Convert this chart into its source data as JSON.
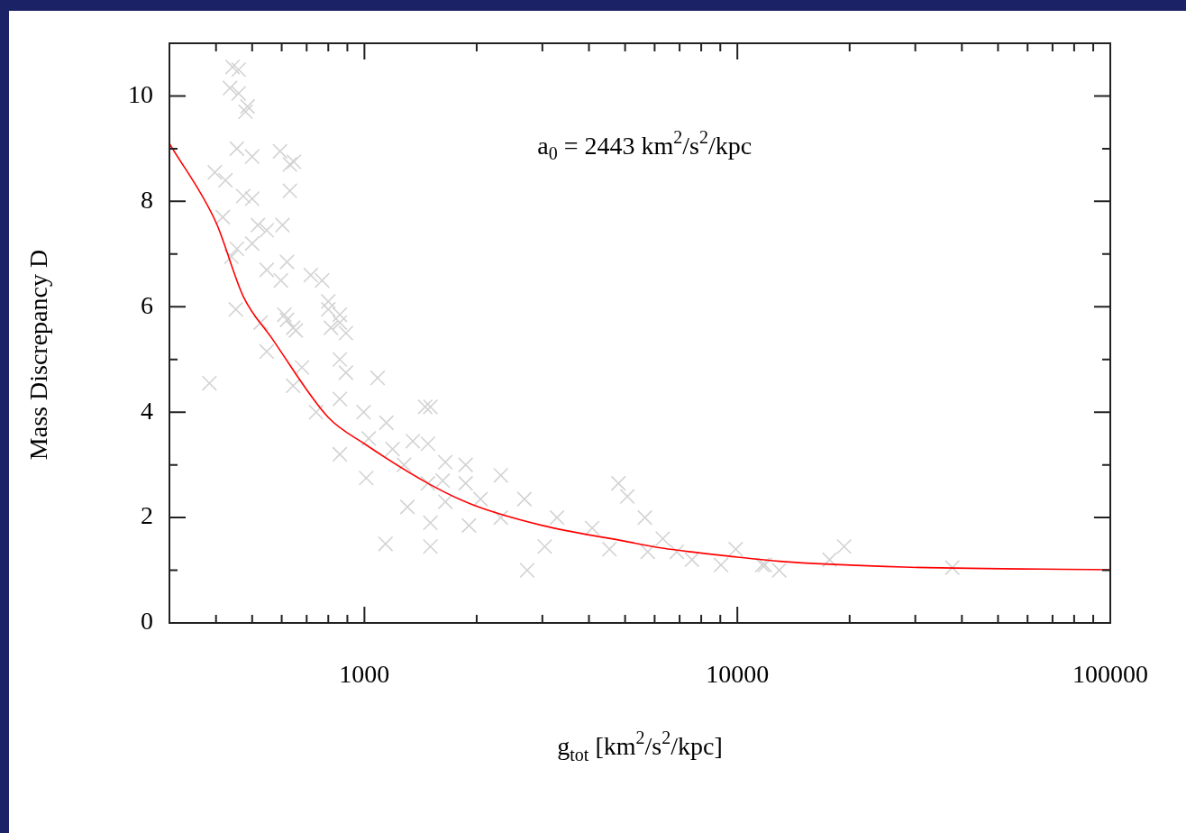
{
  "chart_data": {
    "type": "scatter",
    "xlabel": "g$_{tot}$ [km$^{2}$/s$^{2}$/kpc]",
    "ylabel": "Mass Discrepancy D",
    "annotations": [
      "a$_{0}$ = 2443 km$^{2}$/s$^{2}$/kpc"
    ],
    "log": "x",
    "grid": false,
    "legend": false,
    "xlim": [
      300,
      100000
    ],
    "ylim": [
      0,
      11
    ],
    "xticks": [
      {
        "value": 400,
        "label": null
      },
      {
        "value": 500,
        "label": null
      },
      {
        "value": 600,
        "label": null
      },
      {
        "value": 700,
        "label": null
      },
      {
        "value": 800,
        "label": null
      },
      {
        "value": 900,
        "label": null
      },
      1000,
      {
        "value": 2000,
        "label": null
      },
      {
        "value": 3000,
        "label": null
      },
      {
        "value": 4000,
        "label": null
      },
      {
        "value": 5000,
        "label": null
      },
      {
        "value": 6000,
        "label": null
      },
      {
        "value": 7000,
        "label": null
      },
      {
        "value": 8000,
        "label": null
      },
      {
        "value": 9000,
        "label": null
      },
      10000,
      {
        "value": 20000,
        "label": null
      },
      {
        "value": 30000,
        "label": null
      },
      {
        "value": 40000,
        "label": null
      },
      {
        "value": 50000,
        "label": null
      },
      {
        "value": 60000,
        "label": null
      },
      {
        "value": 70000,
        "label": null
      },
      {
        "value": 80000,
        "label": null
      },
      {
        "value": 90000,
        "label": null
      },
      100000
    ],
    "yticks": [
      0,
      {
        "value": 1,
        "label": null
      },
      2,
      {
        "value": 3,
        "label": null
      },
      4,
      {
        "value": 5,
        "label": null
      },
      6,
      {
        "value": 7,
        "label": null
      },
      8,
      {
        "value": 9,
        "label": null
      },
      10
    ],
    "series": [
      {
        "type": "scatter",
        "marker": "cross",
        "color": "#d3d3d3",
        "x": [
          443,
          460,
          436,
          460,
          486,
          480,
          455,
          500,
          594,
          631,
          647,
          631,
          397,
          424,
          473,
          500,
          417,
          518,
          547,
          603,
          455,
          500,
          440,
          547,
          620,
          597,
          718,
          770,
          800,
          859,
          452,
          527,
          620,
          655,
          813,
          892,
          610,
          644,
          800,
          859,
          547,
          680,
          859,
          892,
          1085,
          384,
          644,
          742,
          859,
          995,
          1145,
          1455,
          859,
          1027,
          1190,
          1348,
          1011,
          1277,
          1480,
          1648,
          1648,
          1868,
          1907,
          1503,
          1139,
          1503,
          1304,
          1503,
          1480,
          1621,
          1868,
          2321,
          2048,
          2686,
          2321,
          3284,
          2731,
          3045,
          4080,
          4800,
          5070,
          5650,
          4540,
          6310,
          5750,
          7550,
          9040,
          9900,
          11850,
          6880,
          11660,
          12950,
          17670,
          19330,
          37700
        ],
        "values": [
          10.55,
          10.5,
          10.15,
          10.05,
          9.8,
          9.7,
          9.0,
          8.85,
          8.95,
          8.7,
          8.75,
          8.2,
          8.55,
          8.4,
          8.1,
          8.05,
          7.7,
          7.55,
          7.45,
          7.55,
          7.1,
          7.2,
          6.95,
          6.7,
          6.85,
          6.5,
          6.6,
          6.5,
          6.1,
          5.85,
          5.95,
          5.7,
          5.75,
          5.55,
          5.6,
          5.5,
          5.85,
          5.6,
          5.95,
          5.7,
          5.15,
          4.85,
          5.0,
          4.75,
          4.65,
          4.55,
          4.5,
          4.0,
          4.25,
          4.0,
          3.8,
          4.1,
          3.2,
          3.5,
          3.3,
          3.45,
          2.75,
          3.0,
          2.65,
          3.05,
          2.3,
          2.65,
          1.85,
          1.9,
          1.5,
          1.45,
          2.2,
          4.1,
          3.4,
          2.7,
          3.0,
          2.8,
          2.35,
          2.35,
          2.0,
          2.0,
          1.0,
          1.45,
          1.8,
          2.65,
          2.4,
          2.0,
          1.4,
          1.6,
          1.35,
          1.2,
          1.1,
          1.4,
          1.1,
          1.35,
          1.1,
          1.0,
          1.2,
          1.45,
          1.05
        ]
      },
      {
        "type": "line",
        "marker": "none",
        "color": "#ff0000",
        "x": [
          300,
          400,
          473,
          565,
          800,
          1000,
          1480,
          1940,
          3000,
          5000,
          6300,
          10000,
          13000,
          28000,
          100000
        ],
        "values": [
          9.1,
          7.6,
          6.2,
          5.4,
          3.9,
          3.4,
          2.65,
          2.25,
          1.85,
          1.55,
          1.42,
          1.25,
          1.17,
          1.06,
          1.01
        ]
      }
    ]
  }
}
